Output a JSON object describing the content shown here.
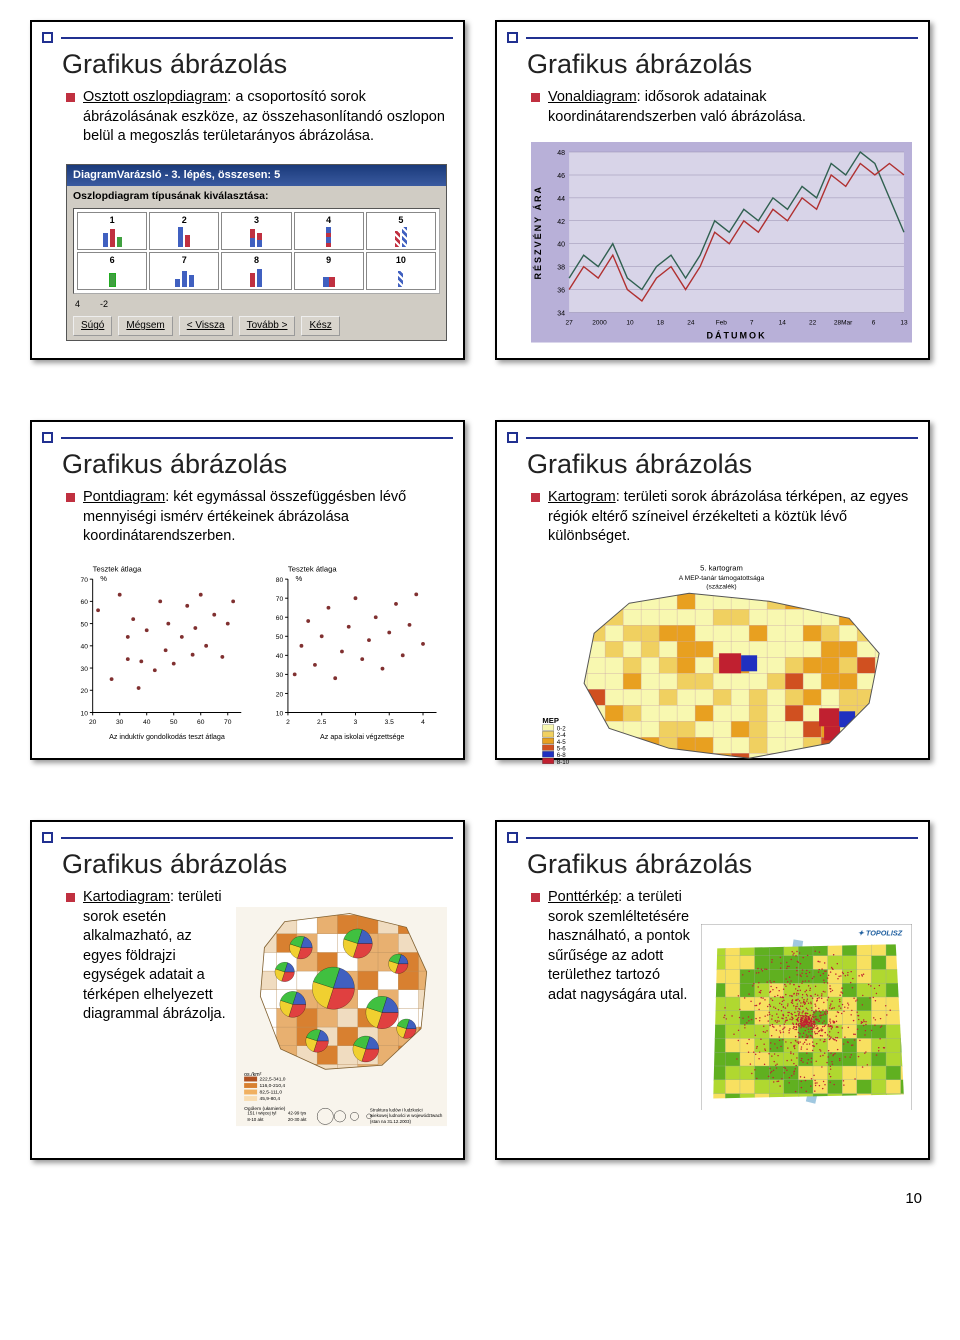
{
  "page_number": "10",
  "common_title": "Grafikus ábrázolás",
  "colors": {
    "title_accent": "#203090",
    "bullet": "#c03040",
    "slide_border": "#000000",
    "bg": "#ffffff"
  },
  "slides": [
    {
      "id": "s1",
      "bullet_term": "Osztott oszlopdiagram",
      "bullet_rest": ": a csoportosító sorok ábrázolásának eszköze, az összehasonlítandó oszlopon belül a megoszlás területarányos ábrázolása.",
      "wizard": {
        "title": "DiagramVarázsló - 3. lépés, összesen: 5",
        "label": "Oszlopdiagram típusának kiválasztása:",
        "btns": [
          "Súgó",
          "Mégsem",
          "< Vissza",
          "Tovább >",
          "Kész"
        ]
      }
    },
    {
      "id": "s2",
      "bullet_term": "Vonaldiagram",
      "bullet_rest": ": idősorok adatainak koordinátarendszerben való ábrázolása.",
      "chart": {
        "type": "line",
        "bg": "#b8b0d8",
        "inner_bg": "#d8d4e8",
        "line1_color": "#b03030",
        "line2_color": "#306050",
        "xlabel": "DÁTUMOK",
        "ylabel": "RÉSZVÉNY ÁRA",
        "ylim": [
          34,
          48
        ],
        "yticks": [
          34,
          36,
          38,
          40,
          42,
          44,
          46,
          48
        ],
        "xticks": [
          "27",
          "2000",
          "10",
          "18",
          "24",
          "Feb",
          "7",
          "14",
          "22",
          "28Mar",
          "6",
          "13"
        ],
        "line1_y": [
          36,
          38,
          37,
          39,
          36,
          35,
          37,
          38,
          36,
          38,
          41,
          40,
          42,
          41,
          43,
          42,
          44,
          43,
          46,
          45,
          47,
          46,
          47,
          46
        ],
        "line2_y": [
          37,
          39,
          38,
          40,
          37,
          36,
          38,
          39,
          37,
          39,
          42,
          41,
          43,
          42,
          44,
          43,
          45,
          44,
          47,
          46,
          48,
          47,
          44,
          41
        ]
      }
    },
    {
      "id": "s3",
      "bullet_term": "Pontdiagram",
      "bullet_rest": ": két egymással összefüggésben lévő mennyiségi ismérv értékeinek ábrázolása koordinátarendszerben.",
      "chart": {
        "type": "scatter",
        "bg": "#ffffff",
        "grid_color": "#c0c0c0",
        "point_color": "#803030",
        "left": {
          "ylabel_top": "Tesztek átlaga",
          "ylabel_unit": "%",
          "xlab": "Az induktív gondolkodás teszt átlaga",
          "xlim": [
            20,
            75
          ],
          "ylim": [
            10,
            70
          ],
          "xticks": [
            20,
            30,
            40,
            50,
            60,
            70
          ],
          "yticks": [
            10,
            20,
            30,
            40,
            50,
            60,
            70
          ],
          "points": [
            [
              22,
              56
            ],
            [
              27,
              25
            ],
            [
              30,
              63
            ],
            [
              33,
              34
            ],
            [
              33,
              44
            ],
            [
              35,
              52
            ],
            [
              37,
              21
            ],
            [
              38,
              33
            ],
            [
              40,
              47
            ],
            [
              43,
              29
            ],
            [
              45,
              60
            ],
            [
              47,
              38
            ],
            [
              48,
              50
            ],
            [
              50,
              32
            ],
            [
              53,
              44
            ],
            [
              55,
              58
            ],
            [
              57,
              36
            ],
            [
              58,
              48
            ],
            [
              60,
              63
            ],
            [
              62,
              40
            ],
            [
              65,
              54
            ],
            [
              68,
              35
            ],
            [
              70,
              50
            ],
            [
              72,
              60
            ]
          ]
        },
        "right": {
          "ylabel_top": "Tesztek átlaga",
          "ylabel_unit": "%",
          "xlab": "Az apa iskolai végzettsége",
          "xlim": [
            2,
            4.2
          ],
          "ylim": [
            10,
            80
          ],
          "xticks": [
            2,
            2.5,
            3,
            3.5,
            4
          ],
          "yticks": [
            10,
            20,
            30,
            40,
            50,
            60,
            70,
            80
          ],
          "points": [
            [
              2.1,
              30
            ],
            [
              2.2,
              45
            ],
            [
              2.3,
              58
            ],
            [
              2.4,
              35
            ],
            [
              2.5,
              50
            ],
            [
              2.6,
              65
            ],
            [
              2.7,
              28
            ],
            [
              2.8,
              42
            ],
            [
              2.9,
              55
            ],
            [
              3.0,
              70
            ],
            [
              3.1,
              38
            ],
            [
              3.2,
              48
            ],
            [
              3.3,
              60
            ],
            [
              3.4,
              33
            ],
            [
              3.5,
              52
            ],
            [
              3.6,
              67
            ],
            [
              3.7,
              40
            ],
            [
              3.8,
              56
            ],
            [
              3.9,
              72
            ],
            [
              4.0,
              46
            ]
          ]
        }
      }
    },
    {
      "id": "s4",
      "bullet_term": "Kartogram",
      "bullet_rest": ": területi sorok ábrázolása térképen, az egyes régiók eltérő színeivel érzékelteti a köztük lévő különbséget.",
      "chart": {
        "type": "choropleth",
        "caption": "5. kartogram\nA MEP-tanár támogatottsága\n(százalék)",
        "legend_title": "MEP",
        "legend": [
          {
            "label": "0-2",
            "color": "#f8f8b0"
          },
          {
            "label": "2-4",
            "color": "#f0d060"
          },
          {
            "label": "4-5",
            "color": "#e8a020"
          },
          {
            "label": "5-6",
            "color": "#d05020"
          },
          {
            "label": "6-8",
            "color": "#2030c0"
          },
          {
            "label": "8-10",
            "color": "#c02030"
          }
        ],
        "cell_colors": [
          "#f8f8b0",
          "#f0d060",
          "#e8a020",
          "#d05020",
          "#2030c0",
          "#c02030"
        ]
      }
    },
    {
      "id": "s5",
      "bullet_term": "Kartodiagram",
      "bullet_rest": ": területi sorok esetén alkalmazható, az egyes földrajzi egységek adatait a térképen elhelyezett diagrammal ábrázolja.",
      "chart": {
        "type": "cartodiagram",
        "map_bg": "#f8f4ec",
        "region_fills": [
          "#f0dcc0",
          "#e8b070",
          "#d88030",
          "#fff"
        ],
        "pie_sectors": [
          "#e04040",
          "#f0d030",
          "#40c040",
          "#4060c0"
        ],
        "legend_density": {
          "label": "os./km²",
          "bands": [
            {
              "label": "222,5-341,0",
              "color": "#b05020"
            },
            {
              "label": "116,0-210,4",
              "color": "#d88030"
            },
            {
              "label": "82,5-111,0",
              "color": "#f0b060"
            },
            {
              "label": "45,9-80,4",
              "color": "#f8dcb0"
            }
          ]
        },
        "legend_circles": {
          "label": "Ogólem (ułamierie)",
          "items": [
            "151 i więcej tyl",
            "42-99 tys",
            "8-10 akt",
            "20-30 akt"
          ]
        },
        "caption_bottom": "Struktura ludów i ludzkości\nwiekowej ludności w województwach\n(stan na 31.12.2003)"
      }
    },
    {
      "id": "s6",
      "bullet_term": "Ponttérkép",
      "bullet_rest": ": a területi sorok szemléltetésére használható, a pontok sűrűsége az adott területhez tartozó adat nagyságára utal.",
      "chart": {
        "type": "dotmap",
        "bg": "#fff",
        "fill_colors": [
          "#f8e060",
          "#b0d830",
          "#60b020"
        ],
        "dot_color": "#c02030",
        "water_color": "#a0c8e0",
        "logo": "TOPOLISZ"
      }
    }
  ]
}
